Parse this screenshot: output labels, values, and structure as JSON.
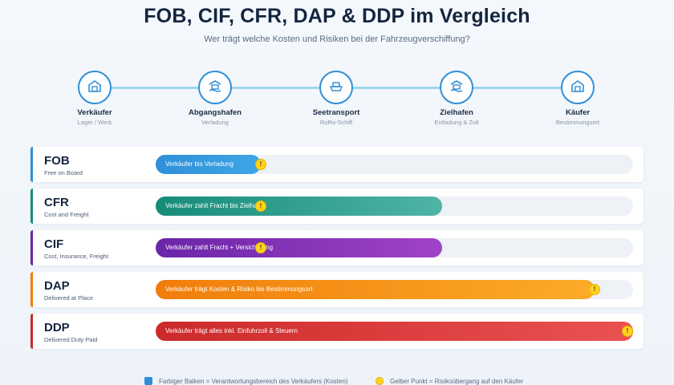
{
  "header": {
    "title": "FOB, CIF, CFR, DAP & DDP im Vergleich",
    "subtitle": "Wer trägt welche Kosten und Risiken bei der Fahrzeugverschiffung?"
  },
  "steps": [
    {
      "label": "Verkäufer",
      "sub": "Lager / Werk",
      "icon": "warehouse-icon"
    },
    {
      "label": "Abgangshafen",
      "sub": "Verladung",
      "icon": "port-icon"
    },
    {
      "label": "Seetransport",
      "sub": "RoRo-Schiff",
      "icon": "ship-icon"
    },
    {
      "label": "Zielhafen",
      "sub": "Entladung & Zoll",
      "icon": "port-icon"
    },
    {
      "label": "Käufer",
      "sub": "Bestimmungsort",
      "icon": "warehouse-icon"
    }
  ],
  "terms": [
    {
      "code": "FOB",
      "name": "Free on Board",
      "bar_label": "Verkäufer bis Verladung",
      "bar_fraction": 0.22,
      "risk_fraction": 0.22,
      "color_start": "#2f8fd8",
      "color_end": "#3fa6e6",
      "accent": "#2f8fd8"
    },
    {
      "code": "CFR",
      "name": "Cost and Freight",
      "bar_label": "Verkäufer zahlt Fracht bis Zielhafen",
      "bar_fraction": 0.6,
      "risk_fraction": 0.22,
      "color_start": "#178c78",
      "color_end": "#4fb4a6",
      "accent": "#178c78"
    },
    {
      "code": "CIF",
      "name": "Cost, Insurance, Freight",
      "bar_label": "Verkäufer zahlt Fracht + Versicherung",
      "bar_fraction": 0.6,
      "risk_fraction": 0.22,
      "color_start": "#6a25a8",
      "color_end": "#a143c8",
      "accent": "#6a25a8"
    },
    {
      "code": "DAP",
      "name": "Delivered at Place",
      "bar_label": "Verkäufer trägt Kosten & Risiko bis Bestimmungsort",
      "bar_fraction": 0.92,
      "risk_fraction": 0.92,
      "color_start": "#f07d0a",
      "color_end": "#fcab2a",
      "accent": "#f07d0a"
    },
    {
      "code": "DDP",
      "name": "Delivered Duty Paid",
      "bar_label": "Verkäufer trägt alles inkl. Einfuhrzoll & Steuern",
      "bar_fraction": 1.0,
      "risk_fraction": 1.0,
      "color_start": "#cc2a2a",
      "color_end": "#ea5252",
      "accent": "#cc2a2a"
    }
  ],
  "legend": {
    "bar": "Farbiger Balken = Verantwortungsbereich des Verkäufers (Kosten)",
    "dot": "Gelber Punkt = Risikoübergang auf den Käufer"
  },
  "risk_symbol": "!"
}
